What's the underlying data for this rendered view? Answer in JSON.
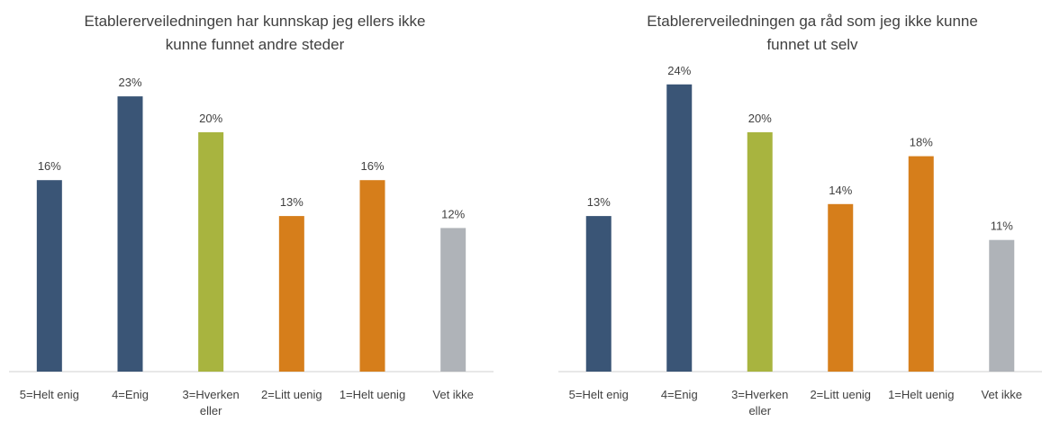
{
  "colors": {
    "dark_blue": "#3a5576",
    "green": "#a8b43f",
    "orange": "#d67e1b",
    "gray": "#afb3b8",
    "axis": "#d0d0d0",
    "text": "#404040"
  },
  "chart_data": [
    {
      "type": "bar",
      "title_lines": [
        "Etablererveiledningen har kunnskap jeg ellers ikke",
        "kunne funnet andre steder"
      ],
      "categories": [
        [
          "5=Helt enig"
        ],
        [
          "4=Enig"
        ],
        [
          "3=Hverken",
          "eller"
        ],
        [
          "2=Litt uenig"
        ],
        [
          "1=Helt uenig"
        ],
        [
          "Vet ikke"
        ]
      ],
      "values": [
        16,
        23,
        20,
        13,
        16,
        12
      ],
      "value_labels": [
        "16%",
        "23%",
        "20%",
        "13%",
        "16%",
        "12%"
      ],
      "bar_colors": [
        "#3a5576",
        "#3a5576",
        "#a8b43f",
        "#d67e1b",
        "#d67e1b",
        "#afb3b8"
      ],
      "ylim": [
        0,
        100
      ],
      "grid": false
    },
    {
      "type": "bar",
      "title_lines": [
        "Etablererveiledningen ga råd som jeg ikke kunne",
        "funnet ut selv"
      ],
      "categories": [
        [
          "5=Helt enig"
        ],
        [
          "4=Enig"
        ],
        [
          "3=Hverken",
          "eller"
        ],
        [
          "2=Litt uenig"
        ],
        [
          "1=Helt uenig"
        ],
        [
          "Vet ikke"
        ]
      ],
      "values": [
        13,
        24,
        20,
        14,
        18,
        11
      ],
      "value_labels": [
        "13%",
        "24%",
        "20%",
        "14%",
        "18%",
        "11%"
      ],
      "bar_colors": [
        "#3a5576",
        "#3a5576",
        "#a8b43f",
        "#d67e1b",
        "#d67e1b",
        "#afb3b8"
      ],
      "ylim": [
        0,
        100
      ],
      "grid": false
    }
  ]
}
